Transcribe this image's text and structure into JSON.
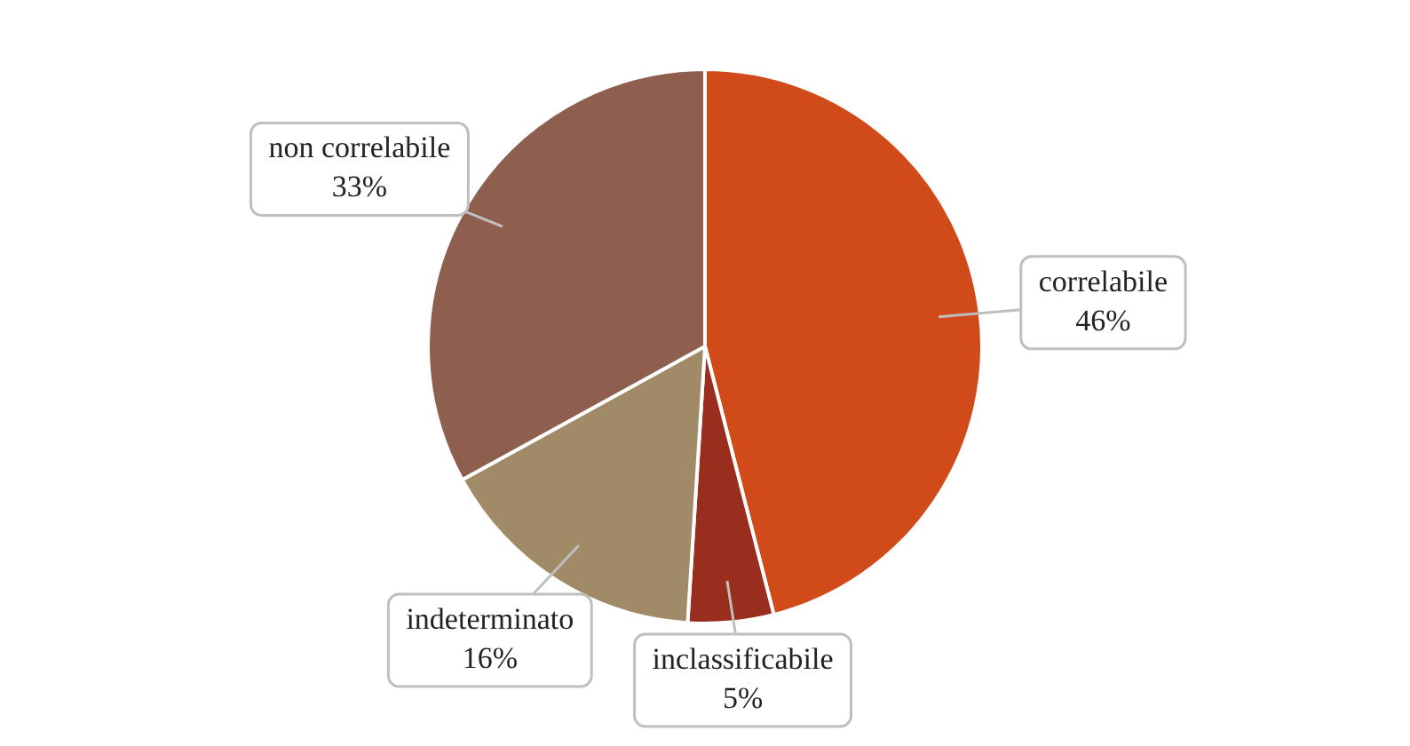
{
  "chart_data": {
    "type": "pie",
    "categories": [
      "correlabile",
      "inclassificabile",
      "indeterminato",
      "non correlabile"
    ],
    "values": [
      46,
      5,
      16,
      33
    ],
    "colors": [
      "#d04a1a",
      "#9a2e1e",
      "#a08a68",
      "#8e5e4e"
    ],
    "value_labels": [
      "46%",
      "5%",
      "16%",
      "33%"
    ],
    "legend": false
  }
}
